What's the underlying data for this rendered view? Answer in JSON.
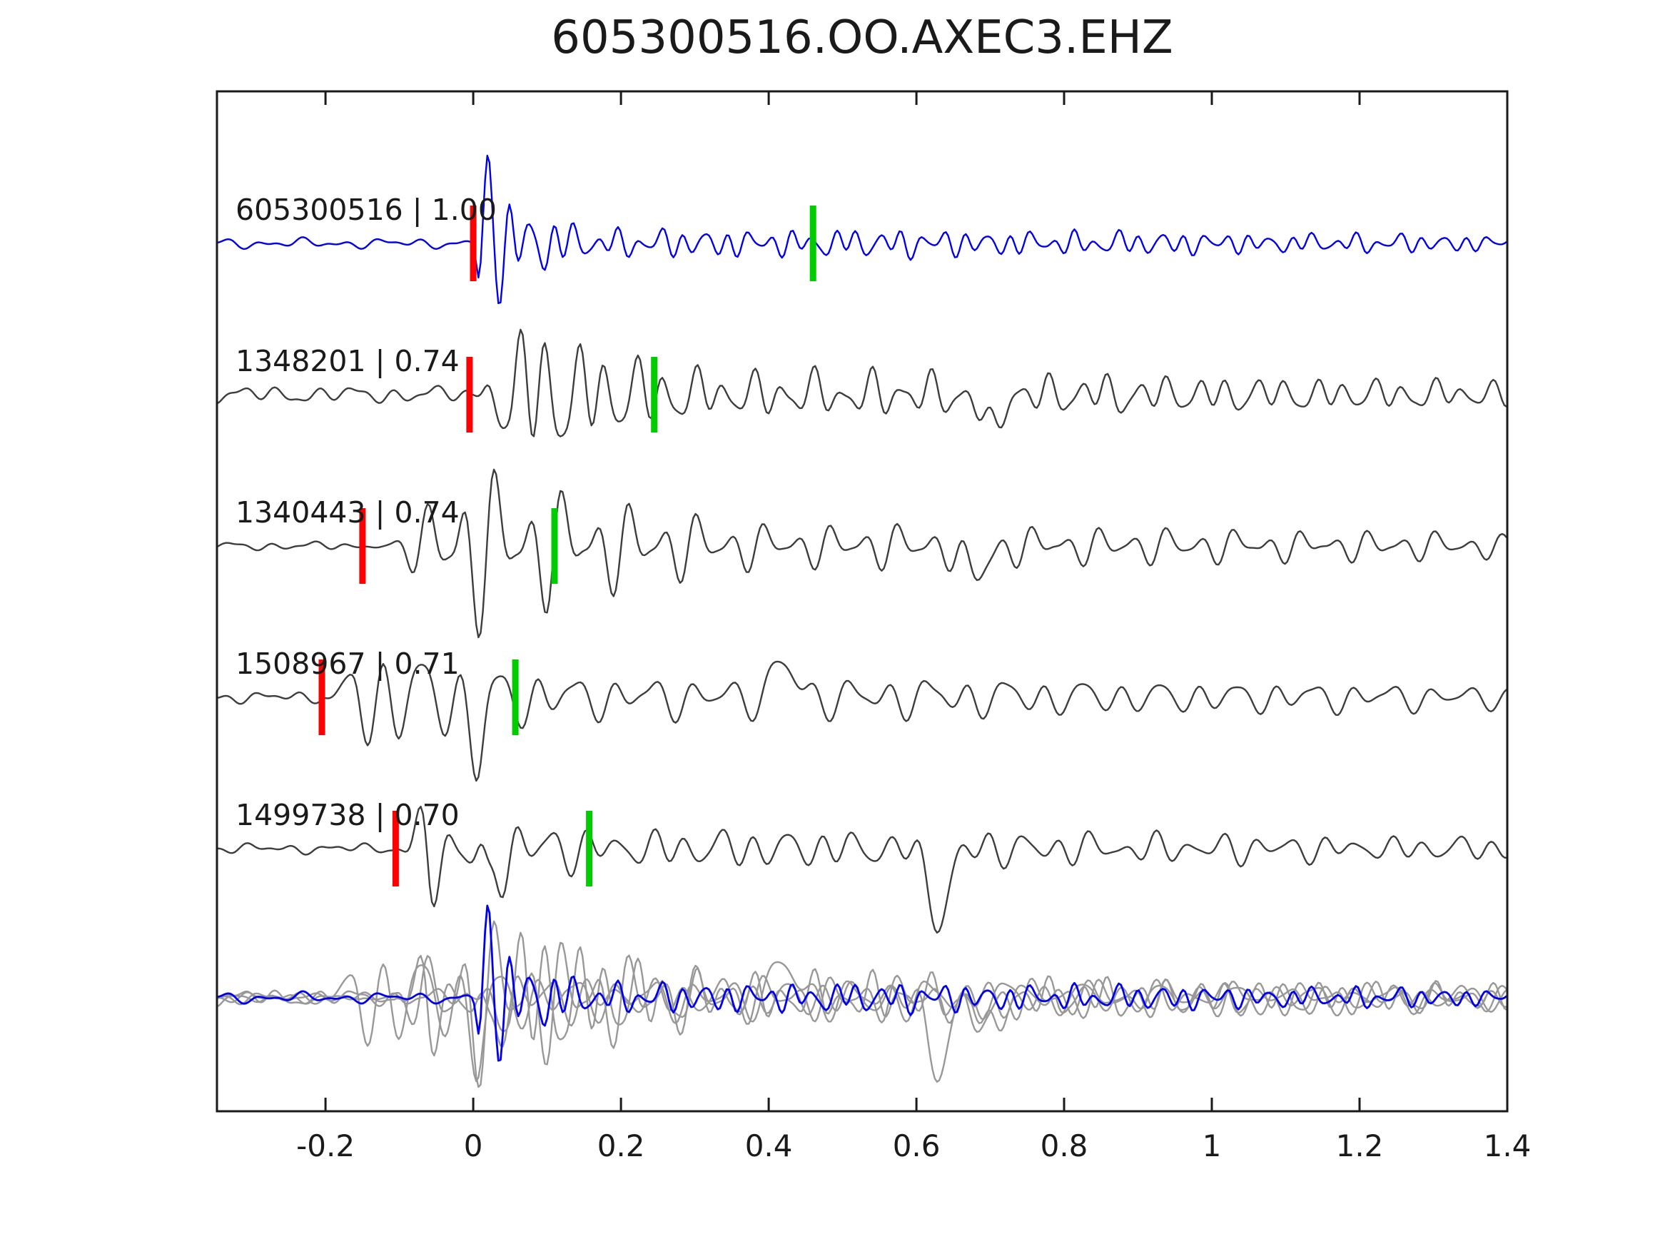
{
  "chart_data": {
    "type": "line",
    "title": "605300516.OO.AXEC3.EHZ",
    "xlabel": "",
    "ylabel": "",
    "xlim": [
      -0.347,
      1.4
    ],
    "x_ticks": [
      -0.2,
      0,
      0.2,
      0.4,
      0.6,
      0.8,
      1,
      1.2,
      1.4
    ],
    "x_tick_labels": [
      "-0.2",
      "0",
      "0.2",
      "0.4",
      "0.6",
      "0.8",
      "1",
      "1.2",
      "1.4"
    ],
    "grid": false,
    "legend": null,
    "colors": {
      "reference_blue": "#0000ee",
      "match_gray": "#3d3d3d",
      "overlay_gray": "#989898",
      "pick_red": "#ff0000",
      "pick_green": "#00cc00",
      "axis": "#1a1a1a",
      "background": "#ffffff"
    },
    "traces": [
      {
        "event_id": "605300516",
        "similarity": "1.00",
        "label": "605300516 | 1.00",
        "role": "reference",
        "pick_red_t": 0.0,
        "pick_green_t": 0.46,
        "synth": {
          "seed": 11,
          "onset": 0.0,
          "freqs": [
            34,
            16,
            47
          ],
          "rise": 0.02,
          "peak": 92,
          "tau": 0.1,
          "coda": 20,
          "pre": 7,
          "ph0": -2.7,
          "spikes": [
            {
              "t": 0.018,
              "a": 85,
              "w": 0.007
            },
            {
              "t": 0.008,
              "a": -55,
              "w": 0.005
            }
          ]
        }
      },
      {
        "event_id": "1348201",
        "similarity": "0.74",
        "label": "1348201 | 0.74",
        "role": "match",
        "pick_red_t": -0.005,
        "pick_green_t": 0.245,
        "synth": {
          "seed": 22,
          "onset": -0.005,
          "freqs": [
            25,
            13,
            38
          ],
          "rise": 0.06,
          "peak": 118,
          "tau": 0.22,
          "coda": 34,
          "pre": 12,
          "spikes": [
            {
              "t": 0.7,
              "a": -55,
              "w": 0.016
            }
          ]
        }
      },
      {
        "event_id": "1340443",
        "similarity": "0.74",
        "label": "1340443 | 0.74",
        "role": "match",
        "pick_red_t": -0.15,
        "pick_green_t": 0.11,
        "synth": {
          "seed": 33,
          "onset": -0.15,
          "freqs": [
            22,
            11,
            33
          ],
          "rise": 0.13,
          "peak": 132,
          "tau": 0.3,
          "coda": 32,
          "pre": 6,
          "spikes": [
            {
              "t": 0.68,
              "a": -45,
              "w": 0.02
            }
          ]
        }
      },
      {
        "event_id": "1508967",
        "similarity": "0.71",
        "label": "1508967 | 0.71",
        "role": "match",
        "pick_red_t": -0.205,
        "pick_green_t": 0.057,
        "synth": {
          "seed": 44,
          "onset": -0.205,
          "freqs": [
            19,
            10,
            29
          ],
          "rise": 0.05,
          "peak": 92,
          "tau": 0.28,
          "coda": 30,
          "pre": 8,
          "spikes": [
            {
              "t": 0.005,
              "a": -85,
              "w": 0.012
            },
            {
              "t": 0.42,
              "a": 48,
              "w": 0.02
            }
          ]
        }
      },
      {
        "event_id": "1499738",
        "similarity": "0.70",
        "label": "1499738 | 0.70",
        "role": "match",
        "pick_red_t": -0.105,
        "pick_green_t": 0.157,
        "synth": {
          "seed": 55,
          "onset": -0.105,
          "freqs": [
            22,
            12,
            31
          ],
          "rise": 0.045,
          "peak": 102,
          "tau": 0.18,
          "coda": 28,
          "pre": 7,
          "spikes": [
            {
              "t": 0.02,
              "a": -75,
              "w": 0.01
            },
            {
              "t": 0.63,
              "a": -95,
              "w": 0.02
            }
          ]
        }
      }
    ],
    "overlay": {
      "description": "all traces overplotted at common baseline",
      "gray_event_ids": [
        "1348201",
        "1340443",
        "1508967",
        "1499738"
      ],
      "blue_event_id": "605300516",
      "gray_scale": 1.0,
      "blue_scale": 1.05
    }
  }
}
